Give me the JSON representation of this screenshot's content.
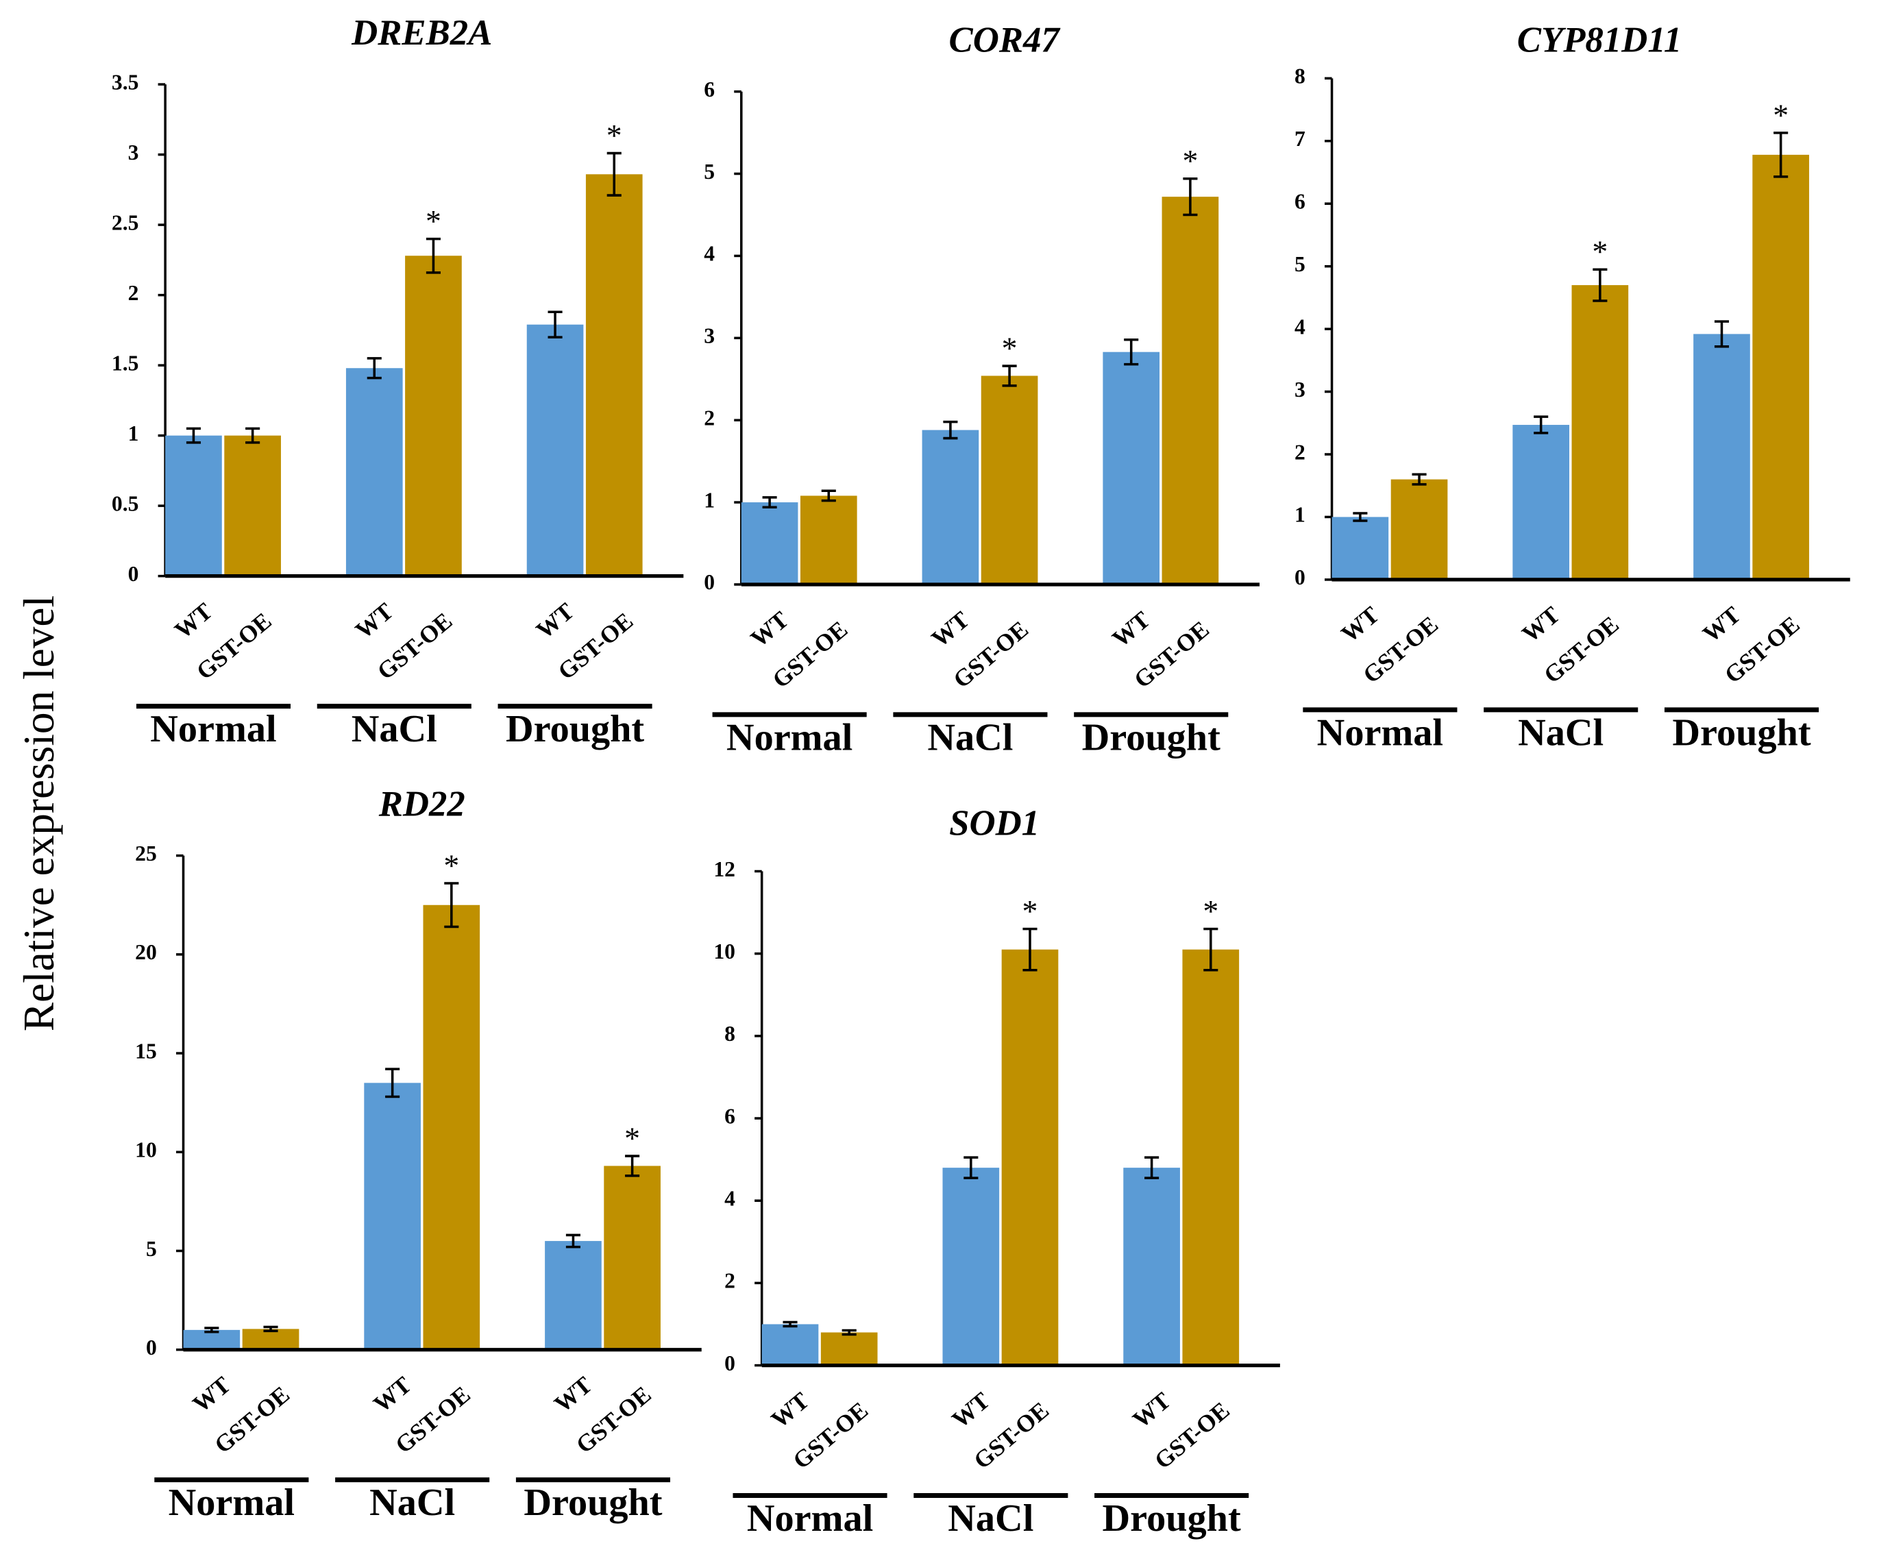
{
  "ylabel": "Relative expression level",
  "chart_data": [
    {
      "type": "bar",
      "title": "DREB2A",
      "categories": [
        "Normal",
        "NaCl",
        "Drought"
      ],
      "series": [
        {
          "name": "WT",
          "color": "#5b9bd5",
          "values": [
            1,
            1.48,
            1.79
          ],
          "errors": [
            0.05,
            0.07,
            0.09
          ],
          "significance": [
            null,
            null,
            null
          ]
        },
        {
          "name": "GST-OE",
          "color": "#bf9000",
          "values": [
            1,
            2.28,
            2.86
          ],
          "errors": [
            0.05,
            0.12,
            0.15
          ],
          "significance": [
            null,
            "*",
            "*"
          ]
        }
      ],
      "ylim": [
        0,
        3.5
      ],
      "yticks": [
        0,
        0.5,
        1,
        1.5,
        2,
        2.5,
        3,
        3.5
      ]
    },
    {
      "type": "bar",
      "title": "COR47",
      "categories": [
        "Normal",
        "NaCl",
        "Drought"
      ],
      "series": [
        {
          "name": "WT",
          "color": "#5b9bd5",
          "values": [
            1,
            1.88,
            2.83
          ],
          "errors": [
            0.06,
            0.1,
            0.15
          ],
          "significance": [
            null,
            null,
            null
          ]
        },
        {
          "name": "GST-OE",
          "color": "#bf9000",
          "values": [
            1.08,
            2.54,
            4.72
          ],
          "errors": [
            0.06,
            0.12,
            0.22
          ],
          "significance": [
            null,
            "*",
            "*"
          ]
        }
      ],
      "ylim": [
        0,
        6
      ],
      "yticks": [
        0,
        1,
        2,
        3,
        4,
        5,
        6
      ]
    },
    {
      "type": "bar",
      "title": "CYP81D11",
      "categories": [
        "Normal",
        "NaCl",
        "Drought"
      ],
      "series": [
        {
          "name": "WT",
          "color": "#5b9bd5",
          "values": [
            1,
            2.47,
            3.92
          ],
          "errors": [
            0.06,
            0.13,
            0.2
          ],
          "significance": [
            null,
            null,
            null
          ]
        },
        {
          "name": "GST-OE",
          "color": "#bf9000",
          "values": [
            1.6,
            4.7,
            6.78
          ],
          "errors": [
            0.08,
            0.25,
            0.35
          ],
          "significance": [
            null,
            "*",
            "*"
          ]
        }
      ],
      "ylim": [
        0,
        8
      ],
      "yticks": [
        0,
        1,
        2,
        3,
        4,
        5,
        6,
        7,
        8
      ]
    },
    {
      "type": "bar",
      "title": "RD22",
      "categories": [
        "Normal",
        "NaCl",
        "Drought"
      ],
      "series": [
        {
          "name": "WT",
          "color": "#5b9bd5",
          "values": [
            1,
            13.5,
            5.5
          ],
          "errors": [
            0.1,
            0.7,
            0.3
          ],
          "significance": [
            null,
            null,
            null
          ]
        },
        {
          "name": "GST-OE",
          "color": "#bf9000",
          "values": [
            1.05,
            22.5,
            9.3
          ],
          "errors": [
            0.1,
            1.1,
            0.5
          ],
          "significance": [
            null,
            "*",
            "*"
          ]
        }
      ],
      "ylim": [
        0,
        25
      ],
      "yticks": [
        0,
        5,
        10,
        15,
        20,
        25
      ]
    },
    {
      "type": "bar",
      "title": "SOD1",
      "categories": [
        "Normal",
        "NaCl",
        "Drought"
      ],
      "series": [
        {
          "name": "WT",
          "color": "#5b9bd5",
          "values": [
            1,
            4.8,
            4.8
          ],
          "errors": [
            0.05,
            0.25,
            0.25
          ],
          "significance": [
            null,
            null,
            null
          ]
        },
        {
          "name": "GST-OE",
          "color": "#bf9000",
          "values": [
            0.8,
            10.1,
            10.1
          ],
          "errors": [
            0.05,
            0.5,
            0.5
          ],
          "significance": [
            null,
            "*",
            "*"
          ]
        }
      ],
      "ylim": [
        0,
        12
      ],
      "yticks": [
        0,
        2,
        4,
        6,
        8,
        10,
        12
      ]
    }
  ]
}
